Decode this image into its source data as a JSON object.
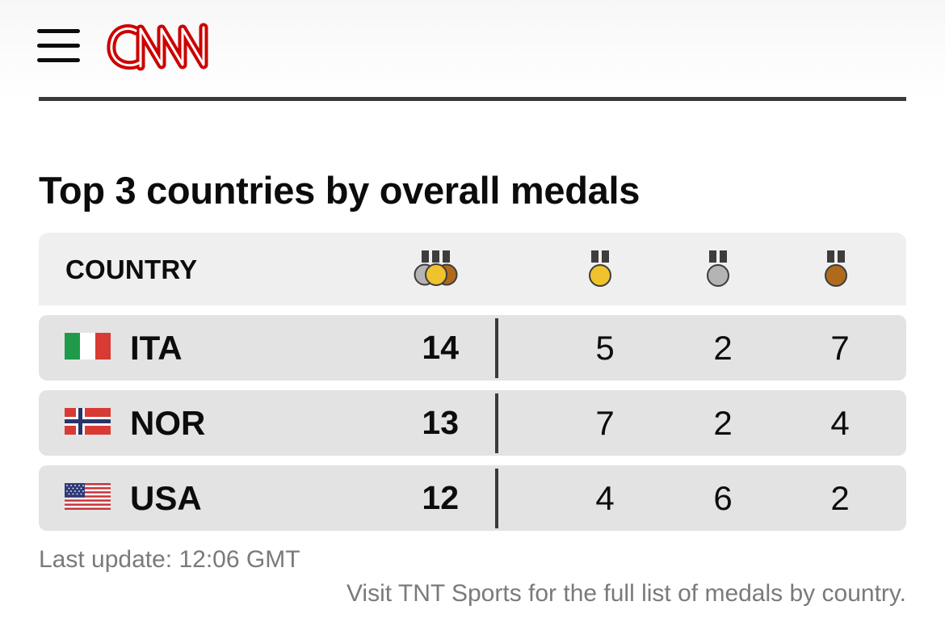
{
  "header": {
    "menu_icon": "hamburger-menu-icon",
    "logo_text": "CNN",
    "logo_color": "#cc0000"
  },
  "title": "Top 3 countries by overall medals",
  "table": {
    "country_header": "COUNTRY",
    "columns_icons": [
      "total-medals-icon",
      "gold-medal-icon",
      "silver-medal-icon",
      "bronze-medal-icon"
    ],
    "colors": {
      "gold": "#f0c22d",
      "silver": "#b4b4b4",
      "bronze": "#b06a1e"
    },
    "rows": [
      {
        "code": "ITA",
        "flag": "italy-flag-icon",
        "total": "14",
        "gold": "5",
        "silver": "2",
        "bronze": "7"
      },
      {
        "code": "NOR",
        "flag": "norway-flag-icon",
        "total": "13",
        "gold": "7",
        "silver": "2",
        "bronze": "4"
      },
      {
        "code": "USA",
        "flag": "usa-flag-icon",
        "total": "12",
        "gold": "4",
        "silver": "6",
        "bronze": "2"
      }
    ]
  },
  "footer": {
    "last_update": "Last update: 12:06 GMT",
    "credit": "Visit TNT Sports for the full list of medals by country."
  }
}
